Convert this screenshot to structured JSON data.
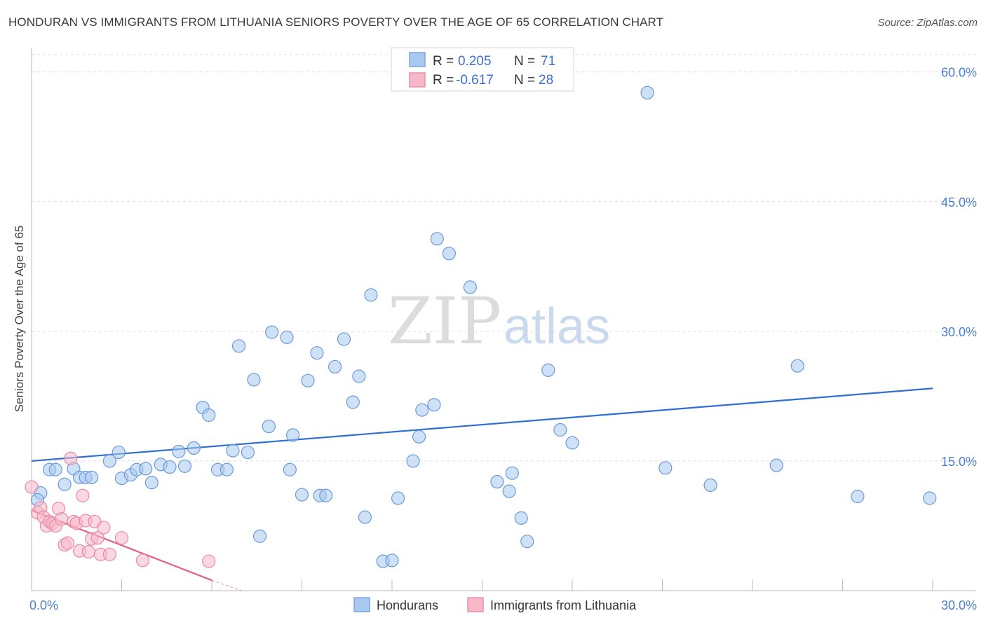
{
  "header": {
    "title": "HONDURAN VS IMMIGRANTS FROM LITHUANIA SENIORS POVERTY OVER THE AGE OF 65 CORRELATION CHART",
    "source": "Source: ZipAtlas.com"
  },
  "watermark": {
    "zip": "ZIP",
    "atlas": "atlas"
  },
  "legend": {
    "rows": [
      {
        "r_label": "R =",
        "r_value": "0.205",
        "n_label": "N =",
        "n_value": "71",
        "color": "#a8c8f0",
        "stroke": "#7aa6e0"
      },
      {
        "r_label": "R =",
        "r_value": "-0.617",
        "n_label": "N =",
        "n_value": "28",
        "color": "#f7b8c8",
        "stroke": "#ec8fa8"
      }
    ]
  },
  "bottom_legend": {
    "items": [
      {
        "label": "Hondurans",
        "color": "#a8c8f0",
        "stroke": "#7aa6e0"
      },
      {
        "label": "Immigrants from Lithuania",
        "color": "#f7b8c8",
        "stroke": "#ec8fa8"
      }
    ]
  },
  "chart_data": {
    "type": "scatter",
    "title": "HONDURAN VS IMMIGRANTS FROM LITHUANIA SENIORS POVERTY OVER THE AGE OF 65 CORRELATION CHART",
    "xlabel": "",
    "ylabel": "Seniors Poverty Over the Age of 65",
    "xlim": [
      0,
      30
    ],
    "ylim": [
      0,
      62
    ],
    "x_tick_labels": [
      "0.0%",
      "30.0%"
    ],
    "y_ticks": [
      15,
      30,
      45,
      60
    ],
    "y_tick_labels": [
      "15.0%",
      "30.0%",
      "45.0%",
      "60.0%"
    ],
    "grid": true,
    "series": [
      {
        "name": "Hondurans",
        "color": "#a8c8f0",
        "stroke": "#6a9ad8",
        "trend": {
          "x": [
            0,
            30
          ],
          "y": [
            15.0,
            23.4
          ],
          "color": "#2e6fd0"
        },
        "points": [
          [
            0.3,
            11.3
          ],
          [
            0.6,
            14.0
          ],
          [
            0.8,
            14.0
          ],
          [
            1.1,
            12.3
          ],
          [
            1.4,
            14.1
          ],
          [
            1.6,
            13.1
          ],
          [
            1.8,
            13.1
          ],
          [
            2.0,
            13.1
          ],
          [
            2.6,
            15.0
          ],
          [
            2.9,
            16.0
          ],
          [
            3.0,
            13.0
          ],
          [
            3.3,
            13.4
          ],
          [
            3.5,
            14.0
          ],
          [
            3.8,
            14.1
          ],
          [
            4.0,
            12.5
          ],
          [
            4.3,
            14.6
          ],
          [
            4.6,
            14.3
          ],
          [
            4.9,
            16.1
          ],
          [
            5.1,
            14.4
          ],
          [
            5.4,
            16.5
          ],
          [
            5.7,
            21.2
          ],
          [
            5.9,
            20.3
          ],
          [
            6.2,
            14.0
          ],
          [
            6.5,
            14.0
          ],
          [
            6.7,
            16.2
          ],
          [
            6.9,
            28.3
          ],
          [
            7.2,
            16.0
          ],
          [
            7.4,
            24.4
          ],
          [
            7.6,
            6.3
          ],
          [
            7.9,
            19.0
          ],
          [
            8.0,
            29.9
          ],
          [
            8.5,
            29.3
          ],
          [
            8.6,
            14.0
          ],
          [
            8.7,
            18.0
          ],
          [
            9.0,
            11.1
          ],
          [
            9.2,
            24.3
          ],
          [
            9.5,
            27.5
          ],
          [
            9.6,
            11.0
          ],
          [
            9.8,
            11.0
          ],
          [
            10.1,
            25.9
          ],
          [
            10.4,
            29.1
          ],
          [
            10.7,
            21.8
          ],
          [
            10.9,
            24.8
          ],
          [
            11.1,
            8.5
          ],
          [
            11.3,
            34.2
          ],
          [
            11.7,
            3.4
          ],
          [
            12.0,
            3.5
          ],
          [
            12.2,
            10.7
          ],
          [
            12.7,
            15.0
          ],
          [
            12.9,
            17.8
          ],
          [
            13.0,
            20.9
          ],
          [
            13.4,
            21.5
          ],
          [
            13.5,
            40.7
          ],
          [
            13.9,
            39.0
          ],
          [
            14.6,
            35.1
          ],
          [
            15.5,
            12.6
          ],
          [
            15.9,
            11.5
          ],
          [
            16.0,
            13.6
          ],
          [
            16.3,
            8.4
          ],
          [
            16.5,
            5.7
          ],
          [
            17.2,
            25.5
          ],
          [
            17.6,
            18.6
          ],
          [
            18.0,
            17.1
          ],
          [
            20.5,
            57.6
          ],
          [
            21.1,
            14.2
          ],
          [
            22.6,
            12.2
          ],
          [
            24.8,
            14.5
          ],
          [
            25.5,
            26.0
          ],
          [
            27.5,
            10.9
          ],
          [
            29.9,
            10.7
          ],
          [
            0.2,
            10.5
          ]
        ]
      },
      {
        "name": "Immigrants from Lithuania",
        "color": "#f7b8c8",
        "stroke": "#e88aa6",
        "trend": {
          "x": [
            0,
            6
          ],
          "y": [
            9.3,
            1.2
          ],
          "color": "#e0608a"
        },
        "trend_dashed": {
          "x": [
            6,
            7
          ],
          "y": [
            1.2,
            -0.3
          ]
        },
        "points": [
          [
            0.0,
            12.0
          ],
          [
            0.2,
            9.0
          ],
          [
            0.3,
            9.6
          ],
          [
            0.4,
            8.5
          ],
          [
            0.5,
            7.5
          ],
          [
            0.6,
            8.0
          ],
          [
            0.7,
            7.8
          ],
          [
            0.8,
            7.5
          ],
          [
            0.9,
            9.5
          ],
          [
            1.0,
            8.3
          ],
          [
            1.1,
            5.3
          ],
          [
            1.2,
            5.5
          ],
          [
            1.3,
            15.3
          ],
          [
            1.4,
            8.0
          ],
          [
            1.5,
            7.8
          ],
          [
            1.6,
            4.6
          ],
          [
            1.7,
            11.0
          ],
          [
            1.8,
            8.1
          ],
          [
            1.9,
            4.5
          ],
          [
            2.0,
            6.0
          ],
          [
            2.1,
            8.0
          ],
          [
            2.2,
            6.1
          ],
          [
            2.3,
            4.2
          ],
          [
            2.4,
            7.3
          ],
          [
            2.6,
            4.2
          ],
          [
            3.0,
            6.1
          ],
          [
            3.7,
            3.5
          ],
          [
            5.9,
            3.4
          ]
        ]
      }
    ]
  }
}
